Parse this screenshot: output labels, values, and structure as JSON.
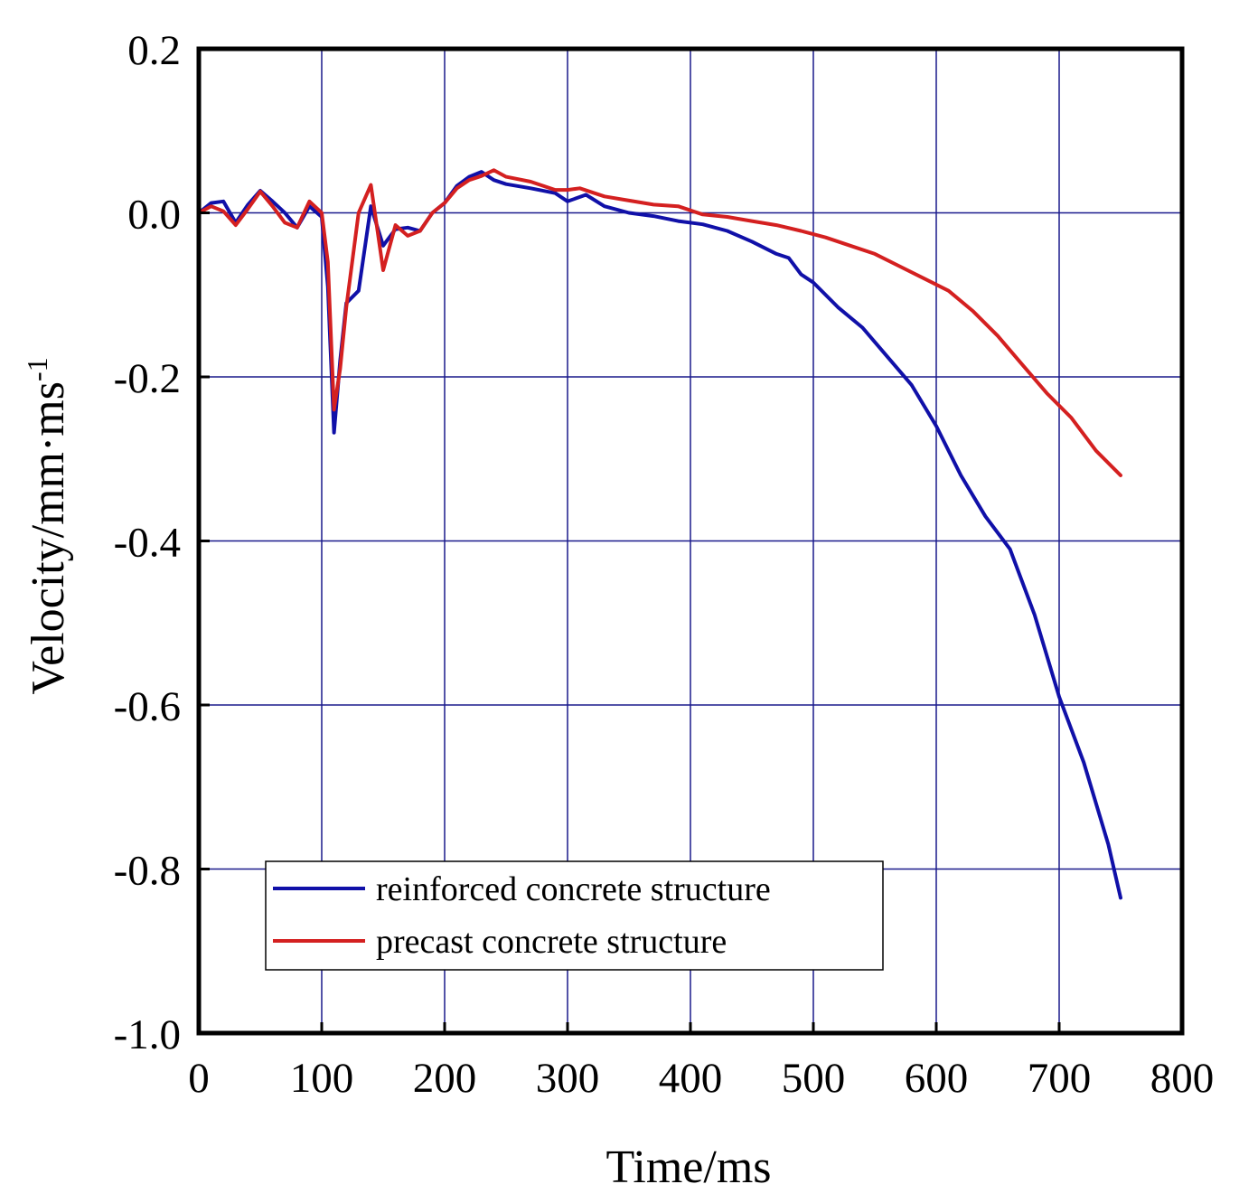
{
  "chart_data": {
    "type": "line",
    "title": "",
    "xlabel": "Time/ms",
    "ylabel": "Velocity/mm·ms",
    "ylabel_superscript": "-1",
    "xlim": [
      0,
      800
    ],
    "ylim": [
      -1.0,
      0.2
    ],
    "xticks": [
      0,
      100,
      200,
      300,
      400,
      500,
      600,
      700,
      800
    ],
    "yticks": [
      0.2,
      0.0,
      -0.2,
      -0.4,
      -0.6,
      -0.8,
      -1.0
    ],
    "ytick_labels": [
      "0.2",
      "0.0",
      "-0.2",
      "-0.4",
      "-0.6",
      "-0.8",
      "-1.0"
    ],
    "grid": true,
    "grid_color": "#1a1a8c",
    "legend_position": "bottom-left",
    "series": [
      {
        "name": "reinforced concrete structure",
        "color": "#1010a8",
        "points": [
          [
            0,
            0.0
          ],
          [
            10,
            0.012
          ],
          [
            20,
            0.014
          ],
          [
            30,
            -0.012
          ],
          [
            40,
            0.01
          ],
          [
            50,
            0.027
          ],
          [
            60,
            0.014
          ],
          [
            70,
            0.0
          ],
          [
            80,
            -0.018
          ],
          [
            90,
            0.008
          ],
          [
            100,
            -0.005
          ],
          [
            105,
            -0.09
          ],
          [
            110,
            -0.268
          ],
          [
            115,
            -0.18
          ],
          [
            120,
            -0.11
          ],
          [
            130,
            -0.095
          ],
          [
            140,
            0.008
          ],
          [
            150,
            -0.04
          ],
          [
            160,
            -0.02
          ],
          [
            170,
            -0.018
          ],
          [
            180,
            -0.022
          ],
          [
            190,
            0.0
          ],
          [
            200,
            0.012
          ],
          [
            210,
            0.033
          ],
          [
            220,
            0.044
          ],
          [
            230,
            0.05
          ],
          [
            240,
            0.04
          ],
          [
            250,
            0.035
          ],
          [
            270,
            0.03
          ],
          [
            290,
            0.024
          ],
          [
            300,
            0.014
          ],
          [
            315,
            0.022
          ],
          [
            330,
            0.008
          ],
          [
            350,
            0.0
          ],
          [
            370,
            -0.004
          ],
          [
            390,
            -0.01
          ],
          [
            410,
            -0.014
          ],
          [
            430,
            -0.022
          ],
          [
            450,
            -0.035
          ],
          [
            470,
            -0.05
          ],
          [
            480,
            -0.055
          ],
          [
            490,
            -0.075
          ],
          [
            500,
            -0.085
          ],
          [
            520,
            -0.115
          ],
          [
            540,
            -0.14
          ],
          [
            560,
            -0.175
          ],
          [
            580,
            -0.21
          ],
          [
            600,
            -0.26
          ],
          [
            620,
            -0.32
          ],
          [
            640,
            -0.37
          ],
          [
            660,
            -0.41
          ],
          [
            680,
            -0.49
          ],
          [
            700,
            -0.59
          ],
          [
            720,
            -0.67
          ],
          [
            740,
            -0.77
          ],
          [
            750,
            -0.835
          ]
        ]
      },
      {
        "name": "precast concrete structure",
        "color": "#d42020",
        "points": [
          [
            0,
            0.0
          ],
          [
            10,
            0.008
          ],
          [
            20,
            0.002
          ],
          [
            30,
            -0.015
          ],
          [
            40,
            0.005
          ],
          [
            50,
            0.026
          ],
          [
            60,
            0.008
          ],
          [
            70,
            -0.012
          ],
          [
            80,
            -0.018
          ],
          [
            90,
            0.014
          ],
          [
            100,
            0.0
          ],
          [
            105,
            -0.06
          ],
          [
            110,
            -0.24
          ],
          [
            115,
            -0.19
          ],
          [
            120,
            -0.115
          ],
          [
            130,
            0.0
          ],
          [
            140,
            0.034
          ],
          [
            150,
            -0.07
          ],
          [
            160,
            -0.015
          ],
          [
            170,
            -0.028
          ],
          [
            180,
            -0.022
          ],
          [
            190,
            0.0
          ],
          [
            200,
            0.012
          ],
          [
            210,
            0.03
          ],
          [
            220,
            0.04
          ],
          [
            230,
            0.045
          ],
          [
            240,
            0.052
          ],
          [
            250,
            0.044
          ],
          [
            270,
            0.038
          ],
          [
            290,
            0.028
          ],
          [
            300,
            0.028
          ],
          [
            310,
            0.03
          ],
          [
            330,
            0.02
          ],
          [
            350,
            0.015
          ],
          [
            370,
            0.01
          ],
          [
            390,
            0.008
          ],
          [
            410,
            -0.002
          ],
          [
            430,
            -0.005
          ],
          [
            450,
            -0.01
          ],
          [
            470,
            -0.015
          ],
          [
            490,
            -0.022
          ],
          [
            510,
            -0.03
          ],
          [
            530,
            -0.04
          ],
          [
            550,
            -0.05
          ],
          [
            570,
            -0.065
          ],
          [
            590,
            -0.08
          ],
          [
            610,
            -0.095
          ],
          [
            630,
            -0.12
          ],
          [
            650,
            -0.15
          ],
          [
            670,
            -0.185
          ],
          [
            690,
            -0.22
          ],
          [
            710,
            -0.25
          ],
          [
            730,
            -0.29
          ],
          [
            750,
            -0.32
          ]
        ]
      }
    ]
  }
}
